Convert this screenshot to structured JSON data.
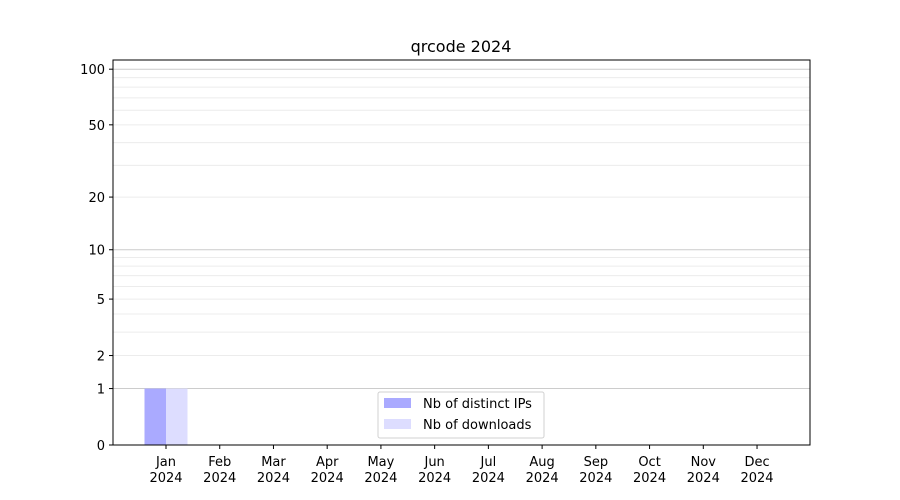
{
  "chart_data": {
    "type": "bar",
    "title": "qrcode 2024",
    "xlabel": "",
    "ylabel": "",
    "yscale": "log(1+y)",
    "ylim": [
      0,
      112
    ],
    "yticks": [
      0,
      1,
      2,
      5,
      10,
      20,
      50,
      100
    ],
    "ytick_labels": [
      "0",
      "1",
      "2",
      "5",
      "10",
      "20",
      "50",
      "100"
    ],
    "grid": true,
    "legend_position": "bottom-center",
    "categories": [
      "Jan\n2024",
      "Feb\n2024",
      "Mar\n2024",
      "Apr\n2024",
      "May\n2024",
      "Jun\n2024",
      "Jul\n2024",
      "Aug\n2024",
      "Sep\n2024",
      "Oct\n2024",
      "Nov\n2024",
      "Dec\n2024"
    ],
    "series": [
      {
        "name": "Nb of distinct IPs",
        "color": "#aaaaff",
        "values": [
          1,
          0,
          0,
          0,
          0,
          0,
          0,
          0,
          0,
          0,
          0,
          0
        ]
      },
      {
        "name": "Nb of downloads",
        "color": "#ddddff",
        "values": [
          1,
          0,
          0,
          0,
          0,
          0,
          0,
          0,
          0,
          0,
          0,
          0
        ]
      }
    ]
  }
}
